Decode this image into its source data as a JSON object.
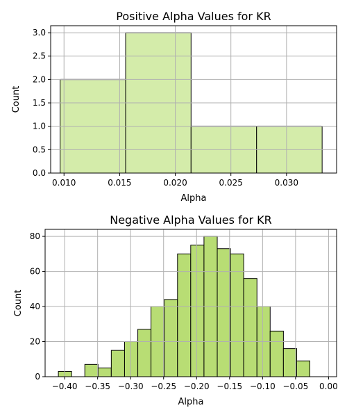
{
  "chart_data": [
    {
      "type": "bar",
      "title": "Positive Alpha Values for KR",
      "xlabel": "Alpha",
      "ylabel": "Count",
      "xlim": [
        0.0088,
        0.0345
      ],
      "ylim": [
        0,
        3.15
      ],
      "grid": true,
      "bar_color": "#d4ecaa",
      "bar_edge_color": "#000000",
      "bar_top_edge_color": "#b0b0b0",
      "bins": [
        {
          "x0": 0.00965,
          "x1": 0.01554,
          "count": 2
        },
        {
          "x0": 0.01554,
          "x1": 0.02142,
          "count": 3
        },
        {
          "x0": 0.02142,
          "x1": 0.02731,
          "count": 1
        },
        {
          "x0": 0.02731,
          "x1": 0.0332,
          "count": 1
        }
      ],
      "xticks": [
        {
          "value": 0.01,
          "label": "0.010"
        },
        {
          "value": 0.015,
          "label": "0.015"
        },
        {
          "value": 0.02,
          "label": "0.020"
        },
        {
          "value": 0.025,
          "label": "0.025"
        },
        {
          "value": 0.03,
          "label": "0.030"
        }
      ],
      "yticks": [
        {
          "value": 0.0,
          "label": "0.0"
        },
        {
          "value": 0.5,
          "label": "0.5"
        },
        {
          "value": 1.0,
          "label": "1.0"
        },
        {
          "value": 1.5,
          "label": "1.5"
        },
        {
          "value": 2.0,
          "label": "2.0"
        },
        {
          "value": 2.5,
          "label": "2.5"
        },
        {
          "value": 3.0,
          "label": "3.0"
        }
      ]
    },
    {
      "type": "bar",
      "title": "Negative Alpha Values for KR",
      "xlabel": "Alpha",
      "ylabel": "Count",
      "xlim": [
        -0.4296,
        0.0122
      ],
      "ylim": [
        0,
        84
      ],
      "grid": true,
      "bar_color": "#b8dd74",
      "bar_edge_color": "#000000",
      "bins": [
        {
          "x0": -0.4095,
          "x1": -0.3895,
          "count": 3
        },
        {
          "x0": -0.3895,
          "x1": -0.3694,
          "count": 0
        },
        {
          "x0": -0.3694,
          "x1": -0.3493,
          "count": 7
        },
        {
          "x0": -0.3493,
          "x1": -0.3293,
          "count": 5
        },
        {
          "x0": -0.3293,
          "x1": -0.3092,
          "count": 15
        },
        {
          "x0": -0.3092,
          "x1": -0.2891,
          "count": 20
        },
        {
          "x0": -0.2891,
          "x1": -0.2691,
          "count": 27
        },
        {
          "x0": -0.2691,
          "x1": -0.249,
          "count": 40
        },
        {
          "x0": -0.249,
          "x1": -0.2289,
          "count": 44
        },
        {
          "x0": -0.2289,
          "x1": -0.2089,
          "count": 70
        },
        {
          "x0": -0.2089,
          "x1": -0.1888,
          "count": 75
        },
        {
          "x0": -0.1888,
          "x1": -0.1687,
          "count": 80
        },
        {
          "x0": -0.1687,
          "x1": -0.1487,
          "count": 73
        },
        {
          "x0": -0.1487,
          "x1": -0.1286,
          "count": 70
        },
        {
          "x0": -0.1286,
          "x1": -0.1085,
          "count": 56
        },
        {
          "x0": -0.1085,
          "x1": -0.0885,
          "count": 40
        },
        {
          "x0": -0.0885,
          "x1": -0.0684,
          "count": 26
        },
        {
          "x0": -0.0684,
          "x1": -0.0483,
          "count": 16
        },
        {
          "x0": -0.0483,
          "x1": -0.0283,
          "count": 9
        }
      ],
      "xticks": [
        {
          "value": -0.4,
          "label": "−0.40"
        },
        {
          "value": -0.35,
          "label": "−0.35"
        },
        {
          "value": -0.3,
          "label": "−0.30"
        },
        {
          "value": -0.25,
          "label": "−0.25"
        },
        {
          "value": -0.2,
          "label": "−0.20"
        },
        {
          "value": -0.15,
          "label": "−0.15"
        },
        {
          "value": -0.1,
          "label": "−0.10"
        },
        {
          "value": -0.05,
          "label": "−0.05"
        },
        {
          "value": 0.0,
          "label": "0.00"
        }
      ],
      "yticks": [
        {
          "value": 0,
          "label": "0"
        },
        {
          "value": 20,
          "label": "20"
        },
        {
          "value": 40,
          "label": "40"
        },
        {
          "value": 60,
          "label": "60"
        },
        {
          "value": 80,
          "label": "80"
        }
      ]
    }
  ]
}
